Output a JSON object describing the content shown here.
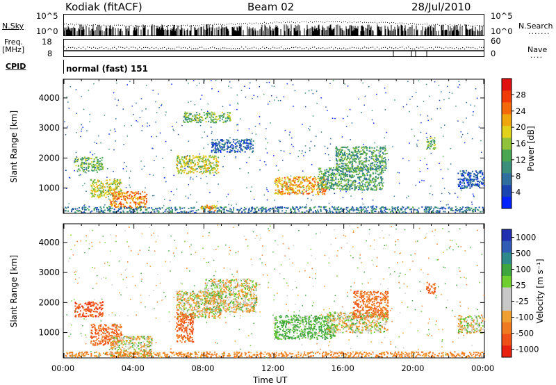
{
  "header": {
    "station": "Kodiak (fitACF)",
    "beam": "Beam 02",
    "date": "28/Jul/2010"
  },
  "strip_panels": {
    "nsky_label": "N.Sky",
    "nsky_ticks": [
      "10^5",
      "10^0"
    ],
    "nsearch_label": "N.Search",
    "nsearch_ticks": [
      "10^5",
      "10^0"
    ],
    "freq_label_1": "Freq.",
    "freq_label_2": "[MHz]",
    "freq_ticks": [
      "18",
      "8"
    ],
    "nave_label": "Nave",
    "nave_ticks": [
      "60",
      "0"
    ],
    "cpid_label": "CPID",
    "cpid_text": "normal (fast) 151"
  },
  "chart_data": [
    {
      "type": "heatmap",
      "title": "",
      "ylabel": "Slant Range [km]",
      "xlabel": "",
      "x_ticks": [
        "00:00",
        "04:00",
        "08:00",
        "12:00",
        "16:00",
        "20:00",
        "00:00"
      ],
      "x_range_hours": [
        0,
        24
      ],
      "y_ticks": [
        "1000",
        "2000",
        "3000",
        "4000"
      ],
      "y_tick_values": [
        1000,
        2000,
        3000,
        4000
      ],
      "ylim": [
        180,
        4600
      ],
      "colorbar": {
        "label": "Power [dB]",
        "ticks": [
          "4",
          "8",
          "12",
          "16",
          "20",
          "24",
          "28"
        ],
        "tick_values": [
          4,
          8,
          12,
          16,
          20,
          24,
          28
        ],
        "range": [
          0,
          32
        ],
        "colors": [
          "#0022ff",
          "#1a45b0",
          "#2f6fa0",
          "#3b8f7a",
          "#4aa650",
          "#90c23a",
          "#e2d21c",
          "#f0a70e",
          "#f46a0a",
          "#f03a08",
          "#e01010"
        ]
      },
      "regions": [
        {
          "t": [
            0.6,
            2.2
          ],
          "r": [
            1550,
            2050
          ],
          "v": 14
        },
        {
          "t": [
            1.5,
            3.3
          ],
          "r": [
            700,
            1300
          ],
          "v": 18
        },
        {
          "t": [
            2.6,
            4.7
          ],
          "r": [
            350,
            900
          ],
          "v": 24
        },
        {
          "t": [
            0.0,
            24.0
          ],
          "r": [
            200,
            400
          ],
          "v": 8
        },
        {
          "t": [
            6.4,
            8.8
          ],
          "r": [
            1500,
            2100
          ],
          "v": 18
        },
        {
          "t": [
            8.4,
            10.8
          ],
          "r": [
            2200,
            2650
          ],
          "v": 6
        },
        {
          "t": [
            6.8,
            9.5
          ],
          "r": [
            3200,
            3550
          ],
          "v": 14
        },
        {
          "t": [
            7.8,
            8.7
          ],
          "r": [
            250,
            450
          ],
          "v": 22
        },
        {
          "t": [
            12.0,
            15.0
          ],
          "r": [
            800,
            1400
          ],
          "v": 22
        },
        {
          "t": [
            14.5,
            18.2
          ],
          "r": [
            950,
            1700
          ],
          "v": 12
        },
        {
          "t": [
            15.5,
            18.4
          ],
          "r": [
            1600,
            2400
          ],
          "v": 12
        },
        {
          "t": [
            20.7,
            21.2
          ],
          "r": [
            2300,
            2700
          ],
          "v": 14
        },
        {
          "t": [
            22.5,
            24.0
          ],
          "r": [
            1000,
            1600
          ],
          "v": 6
        }
      ]
    },
    {
      "type": "heatmap",
      "title": "",
      "ylabel": "Slant Range [km]",
      "xlabel": "Time UT",
      "x_ticks": [
        "00:00",
        "04:00",
        "08:00",
        "12:00",
        "16:00",
        "20:00",
        "00:00"
      ],
      "x_range_hours": [
        0,
        24
      ],
      "y_ticks": [
        "1000",
        "2000",
        "3000",
        "4000"
      ],
      "y_tick_values": [
        1000,
        2000,
        3000,
        4000
      ],
      "ylim": [
        180,
        4600
      ],
      "colorbar": {
        "label": "Velocity [m s⁻¹]",
        "ticks": [
          "1000",
          "500",
          "100",
          "25",
          "-25",
          "-100",
          "-500",
          "-1000"
        ],
        "colors": [
          "#2030b0",
          "#2f5cb5",
          "#2e8a8a",
          "#3fa63f",
          "#6fcf30",
          "#c8c8c8",
          "#c8c8c8",
          "#f0a030",
          "#f07a20",
          "#f05018",
          "#e82010"
        ]
      },
      "regions": [
        {
          "t": [
            0.6,
            2.2
          ],
          "r": [
            1550,
            2050
          ],
          "v": -400
        },
        {
          "t": [
            1.5,
            3.3
          ],
          "r": [
            600,
            1300
          ],
          "v": -300
        },
        {
          "t": [
            2.6,
            5.0
          ],
          "r": [
            200,
            900
          ],
          "v": 0
        },
        {
          "t": [
            0.0,
            24.0
          ],
          "r": [
            200,
            380
          ],
          "v": -150
        },
        {
          "t": [
            6.4,
            9.0
          ],
          "r": [
            1500,
            2400
          ],
          "v": 0
        },
        {
          "t": [
            6.4,
            7.4
          ],
          "r": [
            700,
            1700
          ],
          "v": -300
        },
        {
          "t": [
            8.0,
            11.0
          ],
          "r": [
            1700,
            2800
          ],
          "v": 0
        },
        {
          "t": [
            12.0,
            15.5
          ],
          "r": [
            800,
            1600
          ],
          "v": 150
        },
        {
          "t": [
            15.0,
            18.5
          ],
          "r": [
            1000,
            1700
          ],
          "v": 0
        },
        {
          "t": [
            16.5,
            18.5
          ],
          "r": [
            1500,
            2400
          ],
          "v": -250
        },
        {
          "t": [
            20.7,
            21.2
          ],
          "r": [
            2300,
            2700
          ],
          "v": -300
        },
        {
          "t": [
            22.5,
            24.0
          ],
          "r": [
            1000,
            1600
          ],
          "v": 0
        }
      ]
    }
  ]
}
